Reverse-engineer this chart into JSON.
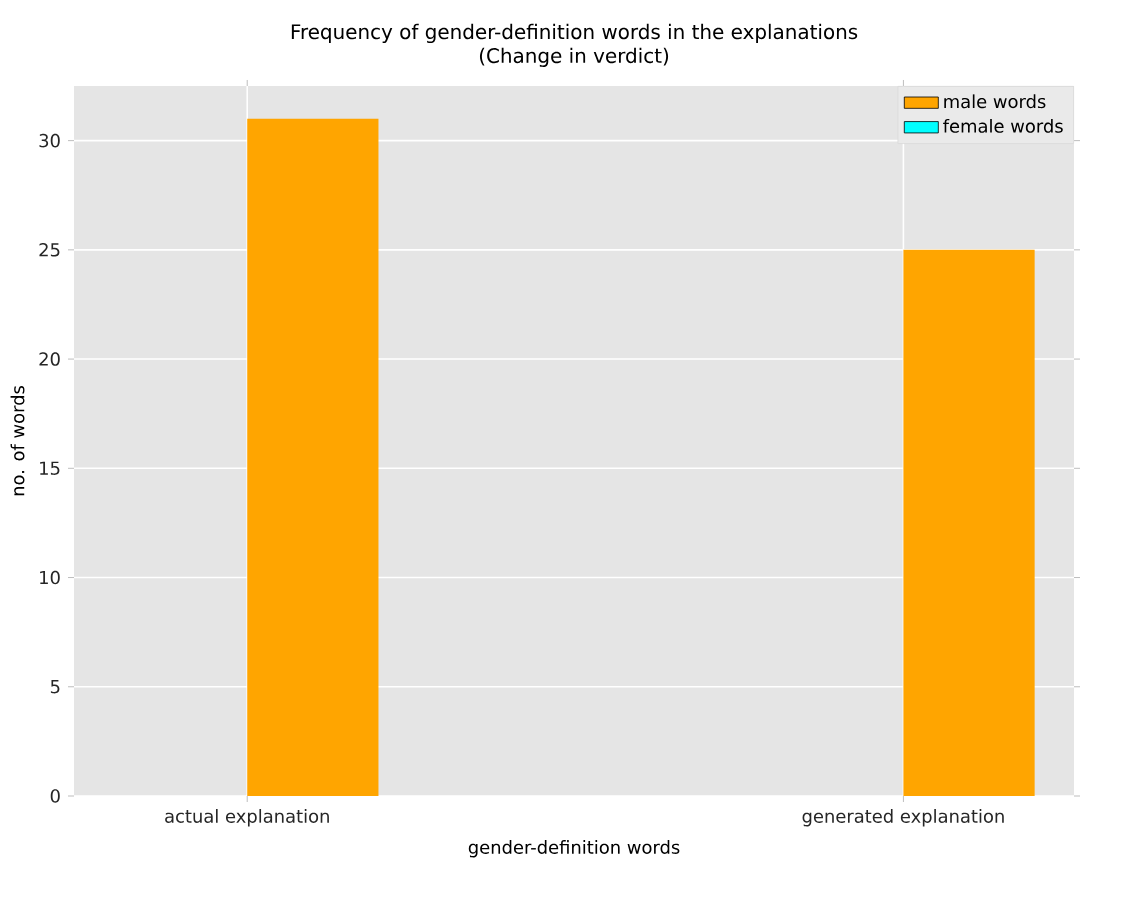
{
  "chart_data": {
    "type": "bar",
    "title": "Frequency of gender-definition words in the explanations\n(Change in verdict)",
    "xlabel": "gender-definition words",
    "ylabel": "no. of words",
    "categories": [
      "actual explanation",
      "generated explanation"
    ],
    "series": [
      {
        "name": "male words",
        "color": "#ffa500",
        "values": [
          31,
          25
        ]
      },
      {
        "name": "female words",
        "color": "#00ffff",
        "values": [
          0,
          0
        ]
      }
    ],
    "ylim": [
      0,
      32.5
    ],
    "yticks": [
      0,
      5,
      10,
      15,
      20,
      25,
      30
    ],
    "grid": true,
    "legend": "top right"
  }
}
